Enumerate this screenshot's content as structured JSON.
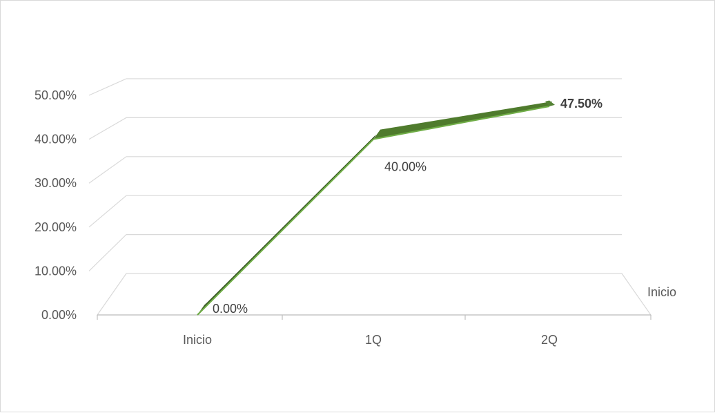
{
  "chart_data": {
    "type": "line",
    "three_d": true,
    "categories": [
      "Inicio",
      "1Q",
      "2Q"
    ],
    "series": [
      {
        "name": "Inicio",
        "values": [
          0.0,
          40.0,
          47.5
        ],
        "labels": [
          "0.00%",
          "40.00%",
          "47.50%"
        ],
        "label_bold": [
          false,
          false,
          true
        ],
        "color": "#548235"
      }
    ],
    "y_ticks": [
      "0.00%",
      "10.00%",
      "20.00%",
      "30.00%",
      "40.00%",
      "50.00%"
    ],
    "ylim": [
      0,
      50
    ],
    "grid": true,
    "legend": "none",
    "title": "",
    "xlabel": "",
    "ylabel": ""
  }
}
